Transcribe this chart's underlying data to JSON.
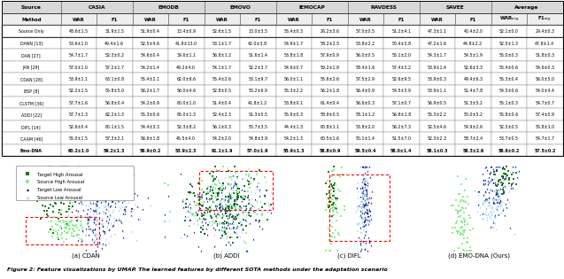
{
  "table": {
    "col_groups": [
      "Source",
      "CASIA",
      "EMODB",
      "EMOVO",
      "IEMOCAP",
      "RAVDESS",
      "SAVEE",
      "Average"
    ],
    "col_group_spans": [
      1,
      2,
      2,
      2,
      2,
      2,
      2,
      2
    ],
    "sub_cols": [
      "Method",
      "WAR",
      "F1",
      "WAR",
      "F1",
      "WAR",
      "F1",
      "WAR",
      "F1",
      "WAR",
      "F1",
      "WAR",
      "F1",
      "WARavg",
      "F1avg"
    ],
    "rows": [
      [
        "Source Only",
        "48.6±1.5",
        "31.9±1.5",
        "51.9±0.4",
        "13.4±0.9",
        "52.6±1.5",
        "13.0±3.5",
        "55.4±0.3",
        "26.2±3.6",
        "57.0±0.5",
        "51.2±4.1",
        "47.3±1.1",
        "40.4±2.0",
        "52.1±0.0",
        "29.4±0.3"
      ],
      [
        "DANN [13]",
        "53.6±1.0",
        "49.4±1.6",
        "52.5±4.6",
        "41.8±13.0",
        "53.1±1.7",
        "42.0±3.8",
        "54.9±1.7",
        "58.2±2.5",
        "53.8±2.2",
        "50.4±3.8",
        "47.2±1.6",
        "44.8±2.2",
        "52.5±1.3",
        "47.8±1.4"
      ],
      [
        "DAN [27]",
        "54.7±1.7",
        "52.3±0.2",
        "54.6±0.4",
        "39.6±1.1",
        "56.8±1.2",
        "51.6±1.4",
        "53.8±1.8",
        "57.9±0.9",
        "56.0±0.5",
        "55.1±2.0",
        "54.3±1.7",
        "54.5±1.9",
        "55.0±0.3",
        "51.8±0.3"
      ],
      [
        "JAN [29]",
        "57.0±1.0",
        "57.2±1.7",
        "54.2±1.4",
        "49.2±4.0",
        "54.1±1.7",
        "52.2±3.7",
        "54.6±0.7",
        "59.2±1.9",
        "58.4±1.6",
        "57.4±3.2",
        "53.9±1.4",
        "52.6±3.3",
        "55.4±0.6",
        "54.6±0.3"
      ],
      [
        "CDAN [28]",
        "53.9±1.1",
        "63.1±0.8",
        "55.4±2.1",
        "62.0±6.6",
        "55.4±2.6",
        "53.1±9.7",
        "56.0±1.1",
        "55.6±2.6",
        "57.5±2.9",
        "52.6±9.5",
        "53.9±0.3",
        "49.4±6.3",
        "55.3±0.4",
        "56.0±5.0"
      ],
      [
        "BSP [8]",
        "52.2±1.5",
        "55.8±5.0",
        "56.2±1.7",
        "56.0±4.6",
        "52.8±0.5",
        "50.2±6.9",
        "55.3±2.2",
        "56.2±1.8",
        "56.4±0.9",
        "54.5±3.9",
        "53.9±1.1",
        "51.4±7.8",
        "54.5±0.6",
        "54.0±4.4"
      ],
      [
        "CLSTM [36]",
        "57.7±1.6",
        "56.8±0.4",
        "54.2±0.9",
        "60.0±1.0",
        "51.4±0.4",
        "41.8±1.2",
        "53.8±0.1",
        "61.4±0.4",
        "56.6±0.3",
        "57.1±0.7",
        "56.9±0.5",
        "51.3±5.2",
        "55.1±0.3",
        "54.7±0.7"
      ],
      [
        "ADDI [22]",
        "57.7±1.3",
        "62.2±1.3",
        "55.3±0.6",
        "65.0±1.3",
        "52.4±2.3",
        "51.3±0.5",
        "55.9±0.3",
        "58.9±0.5",
        "58.1±1.2",
        "56.8±1.8",
        "55.3±2.2",
        "50.0±5.2",
        "55.8±0.6",
        "57.4±0.9"
      ],
      [
        "DIFL [14]",
        "52.6±0.4",
        "60.1±1.5",
        "54.4±3.3",
        "52.3±8.2",
        "56.1±0.3",
        "50.7±3.5",
        "44.4±1.3",
        "60.8±1.1",
        "53.8±2.0",
        "56.2±7.3",
        "52.5±4.6",
        "54.9±2.6",
        "52.3±0.5",
        "55.8±1.0"
      ],
      [
        "CAAM [46]",
        "55.0±1.5",
        "57.3±2.1",
        "56.6±1.8",
        "45.5±4.0",
        "54.2±2.0",
        "54.8±3.9",
        "54.2±1.3",
        "60.5±1.6",
        "50.1±1.4",
        "51.5±7.0",
        "52.3±2.3",
        "58.7±2.4",
        "53.7±0.5",
        "54.7±1.7"
      ],
      [
        "Emo-DNA",
        "60.2±1.0",
        "59.2±1.3",
        "56.9±0.2",
        "53.9±2.3",
        "61.1±1.9",
        "57.0±1.9",
        "55.9±1.3",
        "58.8±0.9",
        "59.5±0.4",
        "58.0±1.4",
        "58.1±0.3",
        "58.3±2.6",
        "58.6±0.2",
        "57.5±0.2"
      ]
    ],
    "bold_last_row": true,
    "underline_cells": [
      [
        10,
        3
      ],
      [
        10,
        5
      ],
      [
        10,
        7
      ],
      [
        10,
        9
      ],
      [
        10,
        12
      ],
      [
        10,
        13
      ]
    ]
  },
  "figure_caption": "Figure 2: Feature visualizations by UMAP. The learned features by different SOTA methods under the adaptation scenario",
  "subfig_labels": [
    "(a) CDAN",
    "(b) ADDI",
    "(c) DIFL",
    "(d) EMO-DNA (Ours)"
  ],
  "legend_items": [
    {
      "label": "Target High Arousal",
      "color": "#1a7a1a",
      "marker": "s"
    },
    {
      "label": "Source High Arousal",
      "color": "#90ee90",
      "marker": "s"
    },
    {
      "label": "Target Low Arousal",
      "color": "#00008b",
      "marker": "^"
    },
    {
      "label": "Source Low Arousal",
      "color": "#87ceeb",
      "marker": "^"
    }
  ],
  "bg_color": "#ffffff",
  "header_bg": "#d8d8d8",
  "subheader_bg": "#eeeeee",
  "grid_color": "#aaaaaa",
  "separator_color": "#333333"
}
